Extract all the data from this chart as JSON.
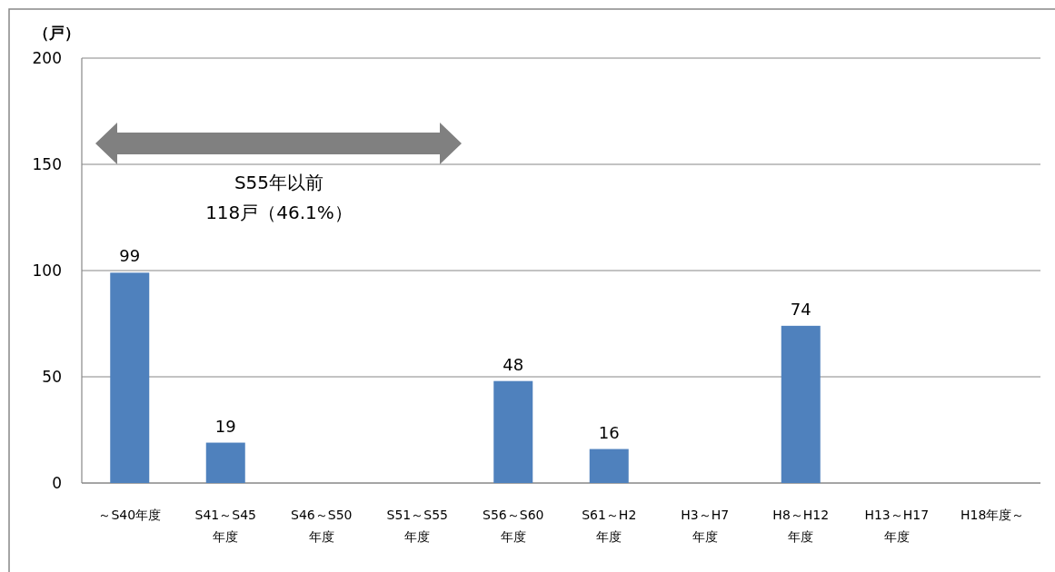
{
  "chart_data": {
    "type": "bar",
    "ylabel": "（戸）",
    "categories": [
      "～S40年度",
      "S41～S45\n年度",
      "S46～S50\n年度",
      "S51～S55\n年度",
      "S56～S60\n年度",
      "S61～H2\n年度",
      "H3～H7\n年度",
      "H8～H12\n年度",
      "H13～H17\n年度",
      "H18年度～"
    ],
    "values": [
      99,
      19,
      0,
      0,
      48,
      16,
      0,
      74,
      0,
      0
    ],
    "value_labels": [
      "99",
      "19",
      null,
      null,
      "48",
      "16",
      null,
      "74",
      null,
      null
    ],
    "color": "#4f81bd",
    "ylim": [
      0,
      200
    ],
    "yticks": [
      0,
      50,
      100,
      150,
      200
    ],
    "grid": "y",
    "annotations": [
      "S55年以前\n118戸（46.1%）"
    ]
  }
}
